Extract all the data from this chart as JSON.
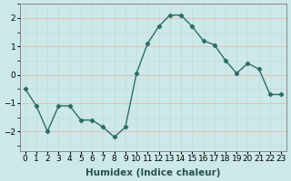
{
  "x": [
    0,
    1,
    2,
    3,
    4,
    5,
    6,
    7,
    8,
    9,
    10,
    11,
    12,
    13,
    14,
    15,
    16,
    17,
    18,
    19,
    20,
    21,
    22,
    23
  ],
  "y": [
    -0.5,
    -1.1,
    -2.0,
    -1.1,
    -1.1,
    -1.6,
    -1.6,
    -1.85,
    -2.2,
    -1.85,
    0.05,
    1.1,
    1.7,
    2.1,
    2.1,
    1.7,
    1.2,
    1.05,
    0.5,
    0.05,
    0.4,
    0.2,
    -0.7,
    -0.7
  ],
  "line_color": "#2d6e63",
  "marker": "D",
  "marker_size": 2.2,
  "bg_color": "#cce8e8",
  "xlabel": "Humidex (Indice chaleur)",
  "xlabel_fontsize": 7.5,
  "ylabel_ticks": [
    -2,
    -1,
    0,
    1,
    2
  ],
  "xtick_labels": [
    "0",
    "1",
    "2",
    "3",
    "4",
    "5",
    "6",
    "7",
    "8",
    "9",
    "10",
    "11",
    "12",
    "13",
    "14",
    "15",
    "16",
    "17",
    "18",
    "19",
    "20",
    "21",
    "22",
    "23"
  ],
  "ylim": [
    -2.7,
    2.5
  ],
  "xlim": [
    -0.5,
    23.5
  ],
  "tick_fontsize": 6.5,
  "grid_x_color": "#c8d8d8",
  "grid_y_color": "#e8b8b8",
  "spine_color": "#888888",
  "linewidth": 1.0
}
